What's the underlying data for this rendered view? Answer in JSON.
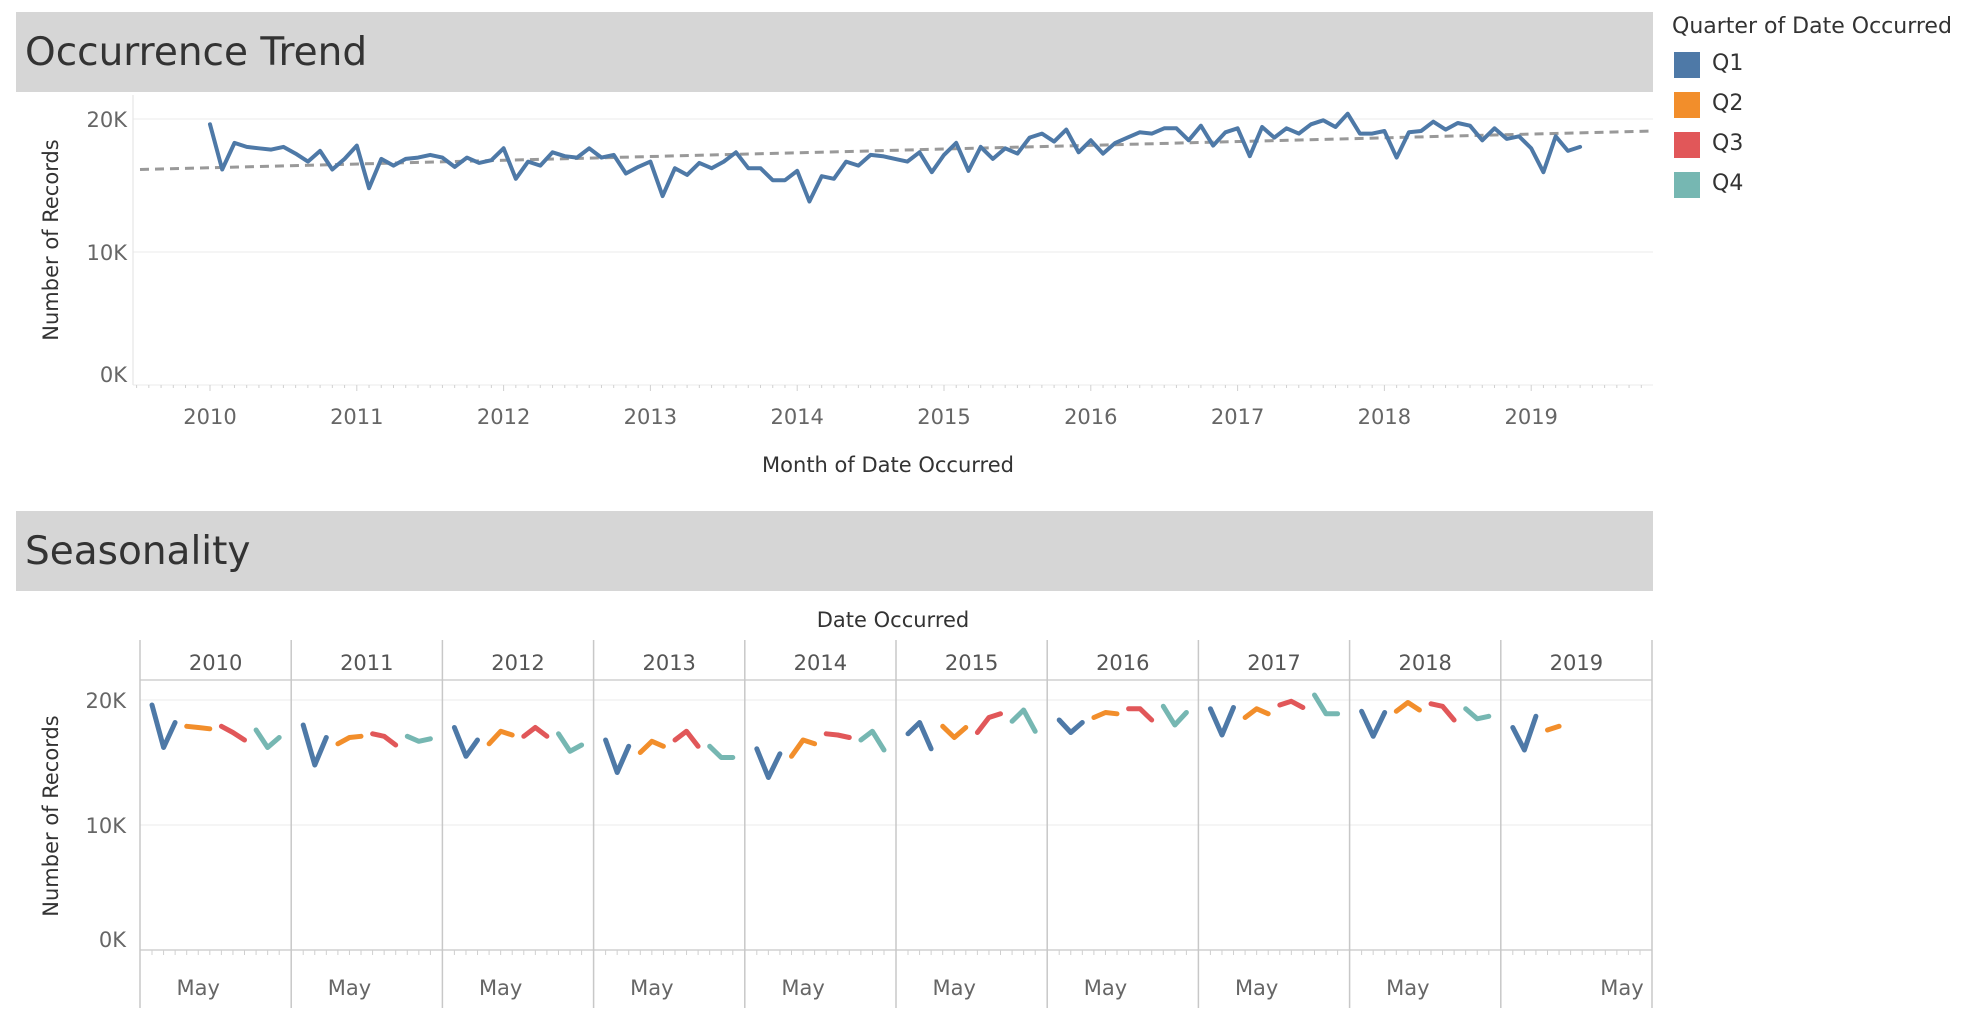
{
  "dashboard": {
    "trend_title": "Occurrence Trend",
    "seasonality_title": "Seasonality"
  },
  "legend": {
    "title": "Quarter of Date Occurred",
    "items": [
      {
        "label": "Q1",
        "color": "#4e79a7"
      },
      {
        "label": "Q2",
        "color": "#f28e2b"
      },
      {
        "label": "Q3",
        "color": "#e15759"
      },
      {
        "label": "Q4",
        "color": "#76b7b2"
      }
    ]
  },
  "chart_data": [
    {
      "type": "line",
      "xlabel": "Month of Date Occurred",
      "ylabel": "Number of Records",
      "ylim": [
        0,
        20000
      ],
      "yticks": [
        "0K",
        "10K",
        "20K"
      ],
      "xticks": [
        "2010",
        "2011",
        "2012",
        "2013",
        "2014",
        "2015",
        "2016",
        "2017",
        "2018",
        "2019"
      ],
      "grid": true,
      "trend_line": {
        "style": "dashed",
        "color": "#999999",
        "start": 16200,
        "end": 19100
      },
      "series": [
        {
          "start": "2010-01",
          "values": [
            19600,
            16200,
            18200,
            17900,
            17800,
            17700,
            17900,
            17400,
            16800,
            17600,
            16200,
            17000,
            18000,
            14800,
            17000,
            16500,
            17000,
            17100,
            17300,
            17100,
            16400,
            17100,
            16700,
            16900,
            17800,
            15500,
            16800,
            16500,
            17500,
            17200,
            17100,
            17800,
            17100,
            17300,
            15900,
            16400,
            16800,
            14200,
            16300,
            15800,
            16700,
            16300,
            16800,
            17500,
            16300,
            16300,
            15400,
            15400,
            16100,
            13800,
            15700,
            15500,
            16800,
            16500,
            17300,
            17200,
            17000,
            16800,
            17500,
            16000,
            17300,
            18200,
            16100,
            17900,
            17000,
            17800,
            17400,
            18600,
            18900,
            18300,
            19200,
            17500,
            18400,
            17400,
            18200,
            18600,
            19000,
            18900,
            19300,
            19300,
            18400,
            19500,
            18000,
            19000,
            19300,
            17200,
            19400,
            18600,
            19300,
            18900,
            19600,
            19900,
            19400,
            20400,
            18900,
            18900,
            19100,
            17100,
            19000,
            19100,
            19800,
            19200,
            19700,
            19500,
            18400,
            19300,
            18500,
            18700,
            17800,
            16000,
            18700,
            17600,
            17900
          ]
        }
      ]
    },
    {
      "type": "line",
      "title": "Date Occurred",
      "ylabel": "Number of Records",
      "ylim": [
        0,
        20000
      ],
      "yticks": [
        "0K",
        "10K",
        "20K"
      ],
      "panel_label": "May",
      "years": [
        "2010",
        "2011",
        "2012",
        "2013",
        "2014",
        "2015",
        "2016",
        "2017",
        "2018",
        "2019"
      ],
      "grid": true,
      "series": [
        {
          "name": "Q1",
          "quarter": 1
        },
        {
          "name": "Q2",
          "quarter": 2
        },
        {
          "name": "Q3",
          "quarter": 3
        },
        {
          "name": "Q4",
          "quarter": 4
        }
      ]
    }
  ]
}
